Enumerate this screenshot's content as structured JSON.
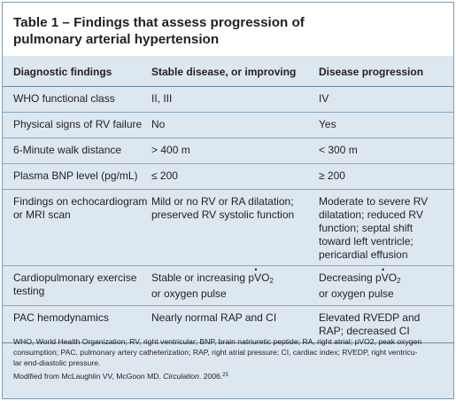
{
  "title_line1": "Table 1 – Findings that assess progression of",
  "title_line2": "pulmonary arterial hypertension",
  "headers": [
    "Diagnostic findings",
    "Stable disease, or improving",
    "Disease progression"
  ],
  "rows": [
    {
      "finding": [
        "WHO functional class"
      ],
      "stable": [
        "II, III"
      ],
      "progression": [
        "IV"
      ]
    },
    {
      "finding": [
        "Physical signs of RV failure"
      ],
      "stable": [
        "No"
      ],
      "progression": [
        "Yes"
      ]
    },
    {
      "finding": [
        "6-Minute walk distance"
      ],
      "stable": [
        "> 400 m"
      ],
      "progression": [
        "< 300 m"
      ]
    },
    {
      "finding": [
        "Plasma BNP level (pg/mL)"
      ],
      "stable": [
        "≤ 200"
      ],
      "progression": [
        "≥ 200"
      ]
    },
    {
      "finding": [
        "Findings on echocardiogram",
        "or MRI scan"
      ],
      "stable": [
        "Mild or no RV or RA dilatation;",
        "preserved RV systolic function"
      ],
      "progression": [
        "Moderate to severe RV",
        "dilatation; reduced RV",
        "function; septal shift",
        "toward left ventricle;",
        "pericardial effusion"
      ]
    },
    {
      "finding": [
        "Cardiopulmonary exercise",
        "testing"
      ],
      "stable_pre": "Stable or increasing ",
      "stable_post": "or oxygen pulse",
      "progression_pre": "Decreasing ",
      "progression_post": "or oxygen pulse",
      "pvo_main": "pVO",
      "pvo_sub": "2",
      "pvo_dot": "•"
    },
    {
      "finding": [
        "PAC hemodynamics"
      ],
      "stable": [
        "Nearly normal RAP and CI"
      ],
      "progression": [
        "Elevated RVEDP and",
        "RAP; decreased CI"
      ]
    }
  ],
  "footnote": {
    "line1": "WHO, World Health Organization; RV, right ventricular; BNP, brain natriuretic peptide; RA, right atrial; pVO2, peak oxygen",
    "line2": "consumption; PAC, pulmonary artery catheterization; RAP, right atrial pressure; CI, cardiac index; RVEDP, right ventricu-",
    "line3": "lar end-diastolic pressure.",
    "source_pre": "Modified from McLaughlin VV, McGoon MD. ",
    "source_journal": "Circulation",
    "source_post": ". 2006.",
    "source_ref": "25"
  },
  "colors": {
    "table_bg": "#dde7f0",
    "rule": "#6b8aa3",
    "border": "#7f9db3"
  }
}
